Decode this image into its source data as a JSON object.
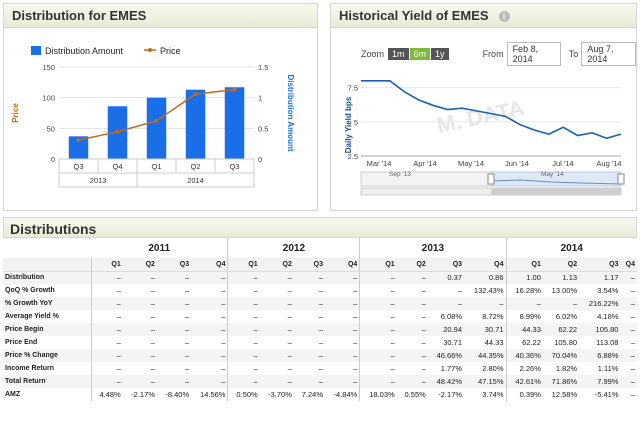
{
  "distribution_panel": {
    "title": "Distribution for EMES",
    "legend": {
      "bar_label": "Distribution Amount",
      "line_label": "Price"
    },
    "colors": {
      "bar": "#1a6fe8",
      "line": "#c06a1a",
      "left_axis": "#c06a1a",
      "right_axis": "#1a6fe8"
    },
    "chart_data": {
      "type": "bar",
      "title": "",
      "categories": [
        "Q3",
        "Q4",
        "Q1",
        "Q2",
        "Q3"
      ],
      "group_labels": [
        {
          "label": "2013",
          "span": 2
        },
        {
          "label": "2014",
          "span": 3
        }
      ],
      "series": [
        {
          "name": "Distribution Amount",
          "axis": "right",
          "values": [
            0.37,
            0.86,
            1.0,
            1.13,
            1.17
          ]
        },
        {
          "name": "Price",
          "type": "line",
          "axis": "left",
          "values": [
            30.71,
            44.33,
            62.22,
            105.8,
            113.08
          ]
        }
      ],
      "ylabel_left": "Price",
      "ylim_left": [
        0,
        150
      ],
      "yticks_left": [
        "0",
        "50",
        "100",
        "150"
      ],
      "ylabel_right": "Distribution Amount",
      "ylim_right": [
        0,
        1.5
      ],
      "yticks_right": [
        "0",
        "0.5",
        "1",
        "1.5"
      ],
      "grid": true,
      "legend_position": "top-left"
    }
  },
  "yield_panel": {
    "title": "Historical Yield of EMES",
    "info_icon": "info-icon",
    "zoom": {
      "label": "Zoom",
      "options": [
        "1m",
        "6m",
        "1y"
      ],
      "active": "6m"
    },
    "from_label": "From",
    "from_value": "Feb 8, 2014",
    "to_label": "To",
    "to_value": "Aug 7, 2014",
    "watermark": "M. DATA",
    "navigator": {
      "labels": [
        "Sep '13",
        "May '14"
      ]
    },
    "colors": {
      "line": "#1a5fb4",
      "axis_label": "#1a4fa0"
    },
    "chart_data": {
      "type": "line",
      "title": "",
      "ylabel": "Daily Yield bps",
      "ylim": [
        2.5,
        8.5
      ],
      "yticks": [
        "2.5",
        "5",
        "7.5"
      ],
      "xticks": [
        "Mar '14",
        "Apr '14",
        "May '14",
        "Jun '14",
        "Jul '14",
        "Aug '14"
      ],
      "x": [
        "Feb 8",
        "Feb 20",
        "Mar 1",
        "Mar 10",
        "Mar 20",
        "Mar 31",
        "Apr 10",
        "Apr 20",
        "May 1",
        "May 10",
        "May 20",
        "Jun 1",
        "Jun 10",
        "Jun 20",
        "Jul 1",
        "Jul 10",
        "Jul 20",
        "Aug 1",
        "Aug 7"
      ],
      "series": [
        {
          "name": "",
          "values": [
            8.0,
            8.0,
            8.0,
            7.2,
            6.6,
            6.2,
            5.9,
            6.0,
            5.8,
            5.6,
            5.4,
            4.8,
            4.4,
            4.1,
            4.6,
            4.0,
            4.2,
            3.8,
            4.1
          ]
        }
      ]
    }
  },
  "table": {
    "title": "Distributions",
    "years": [
      {
        "label": "2011",
        "span": 4
      },
      {
        "label": "2012",
        "span": 4
      },
      {
        "label": "2013",
        "span": 4
      },
      {
        "label": "2014",
        "span": 4
      }
    ],
    "quarters": [
      "Q1",
      "Q2",
      "Q3",
      "Q4",
      "Q1",
      "Q2",
      "Q3",
      "Q4",
      "Q1",
      "Q2",
      "Q3",
      "Q4",
      "Q1",
      "Q2",
      "Q3",
      "Q4"
    ],
    "rows": [
      {
        "label": "Distribution",
        "values": [
          "–",
          "–",
          "–",
          "–",
          "–",
          "–",
          "–",
          "–",
          "–",
          "–",
          "0.37",
          "0.86",
          "1.00",
          "1.13",
          "1.17",
          "–"
        ]
      },
      {
        "label": "QoQ % Growth",
        "values": [
          "–",
          "–",
          "–",
          "–",
          "–",
          "–",
          "–",
          "–",
          "–",
          "–",
          "–",
          "132.43%",
          "16.28%",
          "13.00%",
          "3.54%",
          "–"
        ]
      },
      {
        "label": "% Growth YoY",
        "values": [
          "–",
          "–",
          "–",
          "–",
          "–",
          "–",
          "–",
          "–",
          "–",
          "–",
          "–",
          "–",
          "–",
          "–",
          "216.22%",
          "–"
        ]
      },
      {
        "label": "Average Yield %",
        "values": [
          "–",
          "–",
          "–",
          "–",
          "–",
          "–",
          "–",
          "–",
          "–",
          "–",
          "6.08%",
          "8.72%",
          "8.99%",
          "6.02%",
          "4.18%",
          "–"
        ]
      },
      {
        "label": "Price Begin",
        "values": [
          "–",
          "–",
          "–",
          "–",
          "–",
          "–",
          "–",
          "–",
          "–",
          "–",
          "20.94",
          "30.71",
          "44.33",
          "62.22",
          "105.80",
          "–"
        ]
      },
      {
        "label": "Price End",
        "values": [
          "–",
          "–",
          "–",
          "–",
          "–",
          "–",
          "–",
          "–",
          "–",
          "–",
          "30.71",
          "44.33",
          "62.22",
          "105.80",
          "113.08",
          "–"
        ]
      },
      {
        "label": "Price % Change",
        "values": [
          "–",
          "–",
          "–",
          "–",
          "–",
          "–",
          "–",
          "–",
          "–",
          "–",
          "46.66%",
          "44.35%",
          "40.36%",
          "70.04%",
          "6.88%",
          "–"
        ]
      },
      {
        "label": "Income Return",
        "values": [
          "–",
          "–",
          "–",
          "–",
          "–",
          "–",
          "–",
          "–",
          "–",
          "–",
          "1.77%",
          "2.80%",
          "2.26%",
          "1.82%",
          "1.11%",
          "–"
        ]
      },
      {
        "label": "Total Return",
        "values": [
          "–",
          "–",
          "–",
          "–",
          "–",
          "–",
          "–",
          "–",
          "–",
          "–",
          "48.42%",
          "47.15%",
          "42.61%",
          "71.86%",
          "7.99%",
          "–"
        ]
      },
      {
        "label": "AMZ",
        "values": [
          "4.48%",
          "-2.17%",
          "-8.40%",
          "14.56%",
          "0.50%",
          "-3.70%",
          "7.24%",
          "-4.84%",
          "18.03%",
          "0.55%",
          "-2.17%",
          "3.74%",
          "0.39%",
          "12.58%",
          "-5.41%",
          "–"
        ]
      }
    ]
  }
}
